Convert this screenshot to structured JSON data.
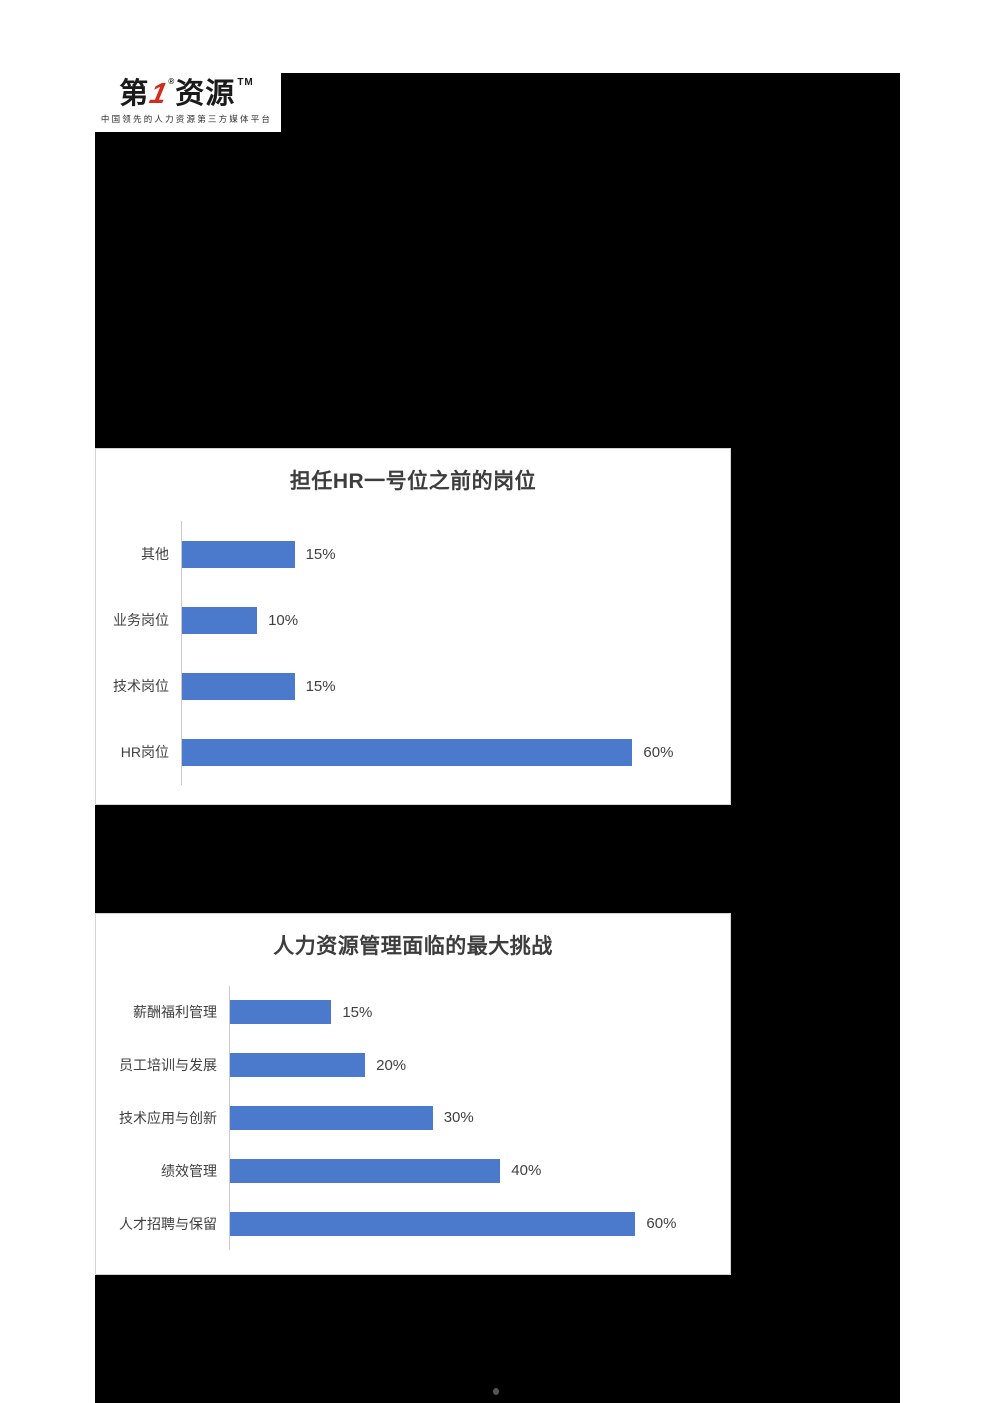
{
  "page": {
    "background_color": "#ffffff",
    "redacted_area_color": "#000000"
  },
  "logo": {
    "part1": "第",
    "part2": "1",
    "registered": "®",
    "part3": "资源",
    "trademark": "TM",
    "tagline": "中国领先的人力资源第三方媒体平台",
    "accent_color": "#d42b1e",
    "text_color": "#1a1a1a"
  },
  "chart_data": [
    {
      "type": "bar",
      "orientation": "horizontal",
      "title": "担任HR一号位之前的岗位",
      "categories": [
        "其他",
        "业务岗位",
        "技术岗位",
        "HR岗位"
      ],
      "values": [
        15,
        10,
        15,
        60
      ],
      "value_labels": [
        "15%",
        "10%",
        "15%",
        "60%"
      ],
      "xlabel": "",
      "ylabel": "",
      "xlim": [
        0,
        73
      ],
      "grid": false,
      "legend": false,
      "bar_color": "#4b79cb",
      "axis_line_color": "#c9c9c9",
      "title_color": "#3d3d3d",
      "label_color": "#404040"
    },
    {
      "type": "bar",
      "orientation": "horizontal",
      "title": "人力资源管理面临的最大挑战",
      "categories": [
        "薪酬福利管理",
        "员工培训与发展",
        "技术应用与创新",
        "绩效管理",
        "人才招聘与保留"
      ],
      "values": [
        15,
        20,
        30,
        40,
        60
      ],
      "value_labels": [
        "15%",
        "20%",
        "30%",
        "40%",
        "60%"
      ],
      "xlabel": "",
      "ylabel": "",
      "xlim": [
        0,
        74
      ],
      "grid": false,
      "legend": false,
      "bar_color": "#4b79cb",
      "axis_line_color": "#c9c9c9",
      "title_color": "#3d3d3d",
      "label_color": "#404040"
    }
  ],
  "footer": {
    "dot": "•"
  }
}
